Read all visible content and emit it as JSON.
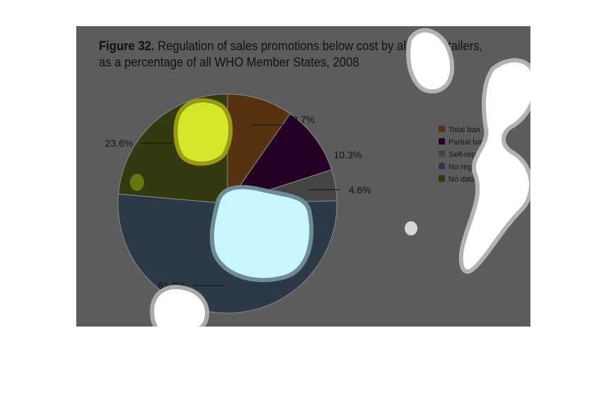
{
  "title": {
    "lead": "Figure 32.",
    "text": "Regulation of sales promotions below cost by alcohol retailers, as a percentage of all WHO Member States, 2008"
  },
  "chart_data": {
    "type": "pie",
    "title": "Figure 32. Regulation of sales promotions below cost by alcohol retailers, as a percentage of all WHO Member States, 2008",
    "categories": [
      "Total ban",
      "Partial ban",
      "Self-regulation",
      "No regulation",
      "No data available"
    ],
    "values": [
      9.7,
      10.3,
      4.6,
      51.8,
      23.6
    ],
    "labels": [
      "9.7%",
      "10.3%",
      "4.6%",
      "51.8%",
      "23.6%"
    ],
    "colors": [
      "#56320e",
      "#240024",
      "#444444",
      "#2b3a46",
      "#333a10"
    ],
    "legend_position": "right"
  }
}
